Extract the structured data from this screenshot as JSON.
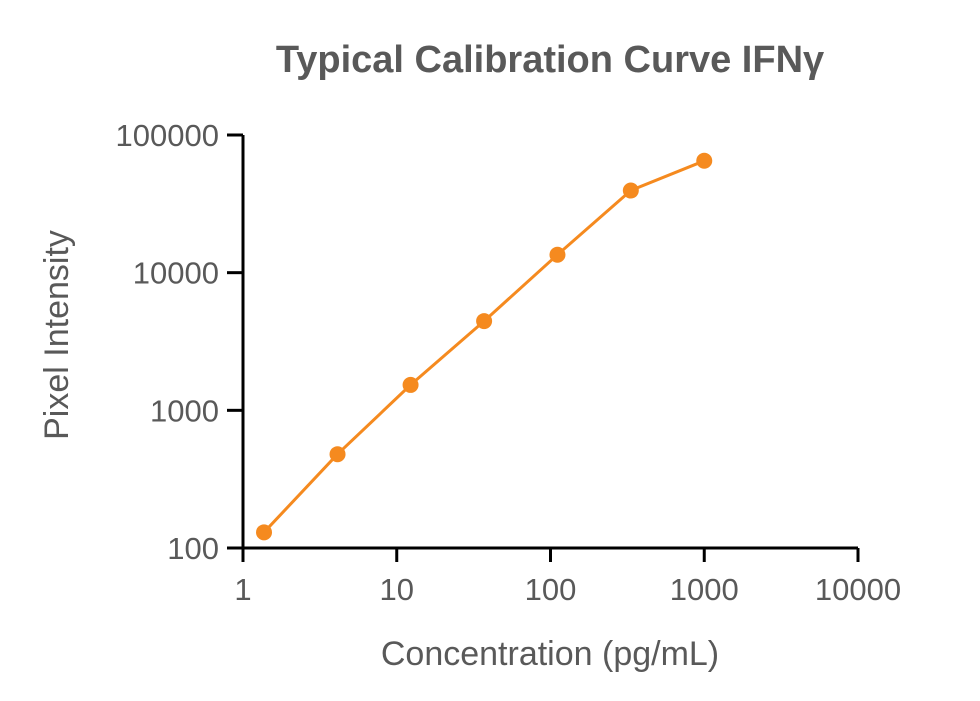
{
  "chart_data": {
    "type": "line",
    "title": "Typical Calibration Curve IFNγ",
    "xlabel": "Concentration (pg/mL)",
    "ylabel": "Pixel Intensity",
    "xscale": "log",
    "yscale": "log",
    "xlim": [
      1,
      10000
    ],
    "ylim": [
      100,
      100000
    ],
    "xticks": [
      1,
      10,
      100,
      1000,
      10000
    ],
    "xtick_labels": [
      "1",
      "10",
      "100",
      "1000",
      "10000"
    ],
    "yticks": [
      100,
      1000,
      10000,
      100000
    ],
    "ytick_labels": [
      "100",
      "1000",
      "10000",
      "100000"
    ],
    "grid": false,
    "legend": "none",
    "series": [
      {
        "color": "#F58A1F",
        "x": [
          1.37,
          4.12,
          12.3,
          37.0,
          111,
          333,
          1000
        ],
        "y": [
          130,
          480,
          1530,
          4450,
          13500,
          39500,
          65000
        ]
      }
    ]
  }
}
